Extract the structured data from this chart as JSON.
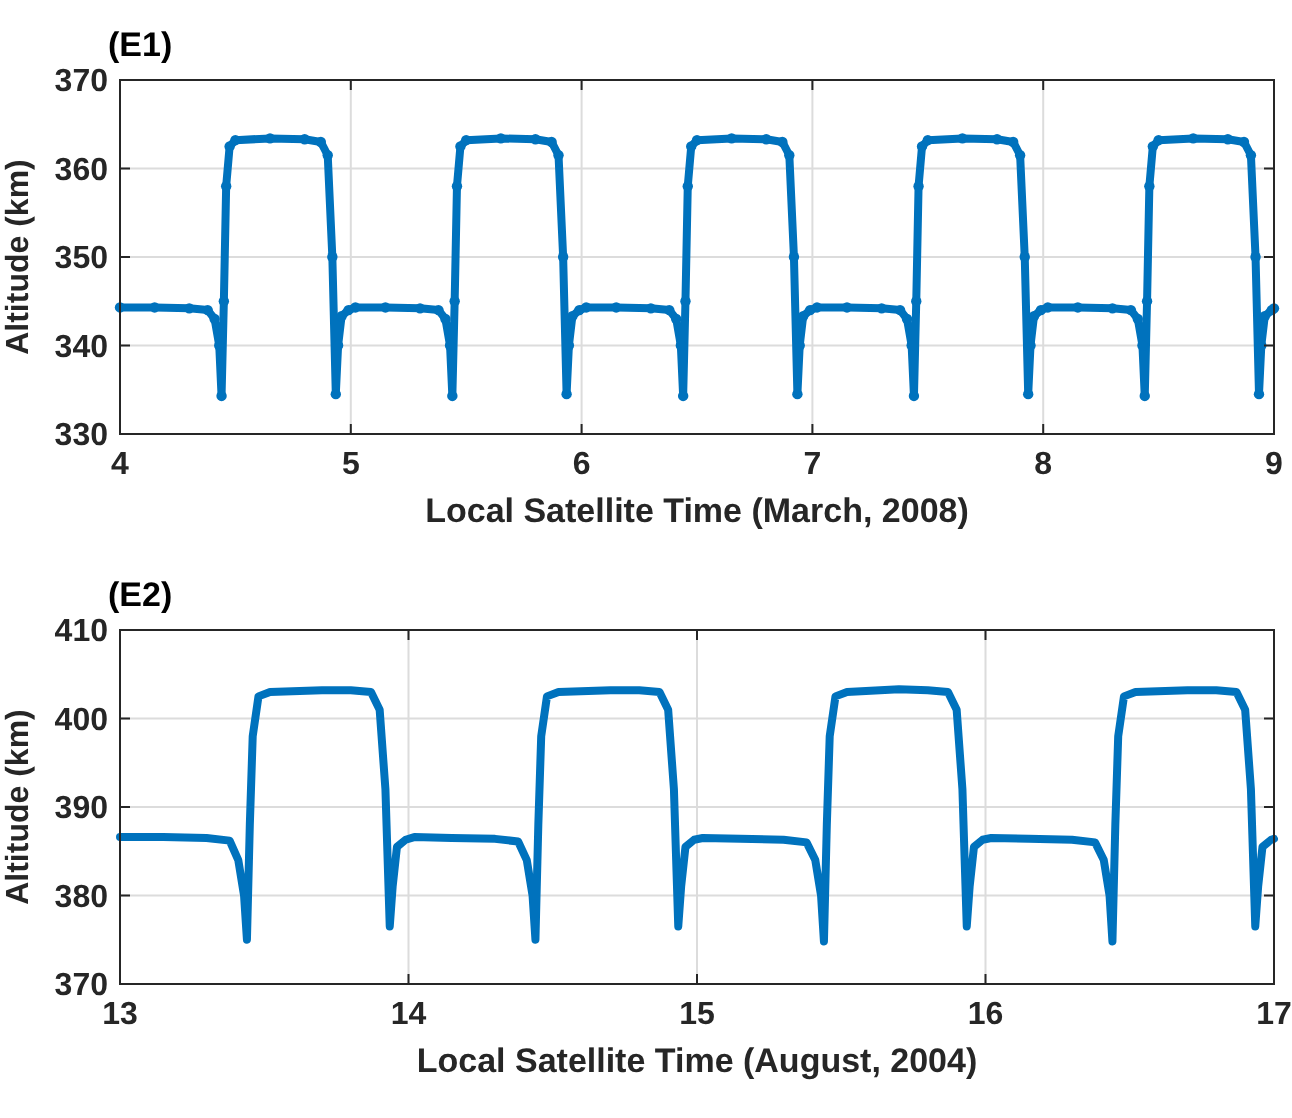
{
  "chart_data": [
    {
      "type": "line",
      "title": "(E1)",
      "xlabel": "Local Satellite Time (March, 2008)",
      "ylabel": "Altitude (km)",
      "xlim": [
        4,
        9
      ],
      "xticks": [
        4,
        5,
        6,
        7,
        8,
        9
      ],
      "ylim": [
        330,
        370
      ],
      "yticks": [
        330,
        340,
        350,
        360,
        370
      ],
      "grid": true,
      "marker": "circle",
      "line_style": "solid",
      "series": [
        {
          "color": "#0072bd",
          "x": [
            4,
            4.15,
            4.3,
            4.38,
            4.41,
            4.43,
            4.44,
            4.45,
            4.46,
            4.475,
            4.5,
            4.65,
            4.8,
            4.87,
            4.9,
            4.92,
            4.935,
            4.945,
            4.96,
            4.99,
            5.02,
            5.15,
            5.3,
            5.38,
            5.41,
            5.43,
            5.44,
            5.45,
            5.46,
            5.475,
            5.5,
            5.65,
            5.8,
            5.87,
            5.9,
            5.92,
            5.935,
            5.945,
            5.96,
            5.99,
            6.02,
            6.15,
            6.3,
            6.38,
            6.41,
            6.43,
            6.44,
            6.45,
            6.46,
            6.475,
            6.5,
            6.65,
            6.8,
            6.87,
            6.9,
            6.92,
            6.935,
            6.945,
            6.96,
            6.99,
            7.02,
            7.15,
            7.3,
            7.38,
            7.41,
            7.43,
            7.44,
            7.45,
            7.46,
            7.475,
            7.5,
            7.65,
            7.8,
            7.87,
            7.9,
            7.92,
            7.935,
            7.945,
            7.96,
            7.99,
            8.02,
            8.15,
            8.3,
            8.38,
            8.41,
            8.43,
            8.44,
            8.45,
            8.46,
            8.475,
            8.5,
            8.65,
            8.8,
            8.87,
            8.9,
            8.92,
            8.935,
            8.945,
            8.96,
            8.99,
            9
          ],
          "values": [
            344.3,
            344.3,
            344.2,
            344.0,
            343.0,
            340,
            334.3,
            345,
            358,
            362.5,
            363.2,
            363.4,
            363.3,
            363.0,
            361.5,
            350,
            334.5,
            340,
            343.3,
            344.0,
            344.3,
            344.3,
            344.2,
            344.0,
            343.0,
            340,
            334.3,
            345,
            358,
            362.5,
            363.2,
            363.4,
            363.3,
            363.0,
            361.5,
            350,
            334.5,
            340,
            343.3,
            344.0,
            344.3,
            344.3,
            344.2,
            344.0,
            343.0,
            340,
            334.3,
            345,
            358,
            362.5,
            363.2,
            363.4,
            363.3,
            363.0,
            361.5,
            350,
            334.5,
            340,
            343.3,
            344.0,
            344.3,
            344.3,
            344.2,
            344.0,
            343.0,
            340,
            334.3,
            345,
            358,
            362.5,
            363.2,
            363.4,
            363.3,
            363.0,
            361.5,
            350,
            334.5,
            340,
            343.3,
            344.0,
            344.3,
            344.3,
            344.2,
            344.0,
            343.0,
            340,
            334.3,
            345,
            358,
            362.5,
            363.2,
            363.4,
            363.3,
            363.0,
            361.5,
            350,
            334.5,
            340,
            343.3,
            344.0,
            344.2
          ]
        }
      ]
    },
    {
      "type": "line",
      "title": "(E2)",
      "xlabel": "Local Satellite Time (August, 2004)",
      "ylabel": "Altitude (km)",
      "xlim": [
        13,
        17
      ],
      "xticks": [
        13,
        14,
        15,
        16,
        17
      ],
      "ylim": [
        370,
        410
      ],
      "yticks": [
        370,
        380,
        390,
        400,
        410
      ],
      "grid": true,
      "marker": "none",
      "line_style": "solid",
      "series": [
        {
          "color": "#0072bd",
          "x": [
            13,
            13.15,
            13.3,
            13.38,
            13.41,
            13.43,
            13.44,
            13.45,
            13.46,
            13.48,
            13.52,
            13.7,
            13.8,
            13.87,
            13.9,
            13.92,
            13.935,
            13.945,
            13.96,
            13.99,
            14.02,
            14.15,
            14.3,
            14.38,
            14.41,
            14.43,
            14.44,
            14.45,
            14.46,
            14.48,
            14.52,
            14.7,
            14.8,
            14.87,
            14.9,
            14.92,
            14.935,
            14.945,
            14.96,
            14.99,
            15.02,
            15.15,
            15.3,
            15.38,
            15.41,
            15.43,
            15.44,
            15.45,
            15.46,
            15.48,
            15.52,
            15.7,
            15.8,
            15.87,
            15.9,
            15.92,
            15.935,
            15.945,
            15.96,
            15.99,
            16.02,
            16.15,
            16.3,
            16.38,
            16.41,
            16.43,
            16.44,
            16.45,
            16.46,
            16.48,
            16.52,
            16.7,
            16.8,
            16.87,
            16.9,
            16.92,
            16.935,
            16.945,
            16.96,
            16.99,
            17
          ],
          "values": [
            386.6,
            386.6,
            386.5,
            386.2,
            384,
            380,
            375,
            388,
            398,
            402.5,
            403,
            403.2,
            403.2,
            403,
            401,
            392,
            376.5,
            381,
            385.5,
            386.3,
            386.6,
            386.5,
            386.4,
            386.1,
            384,
            380,
            375,
            388,
            398,
            402.5,
            403,
            403.2,
            403.2,
            403,
            401,
            392,
            376.5,
            381,
            385.5,
            386.3,
            386.5,
            386.4,
            386.3,
            386.0,
            384,
            380,
            374.8,
            388,
            398,
            402.5,
            403,
            403.3,
            403.2,
            403,
            401,
            392,
            376.5,
            381,
            385.5,
            386.3,
            386.5,
            386.4,
            386.3,
            386.0,
            384,
            380,
            374.8,
            388,
            398,
            402.5,
            403,
            403.2,
            403.2,
            403,
            401,
            392,
            376.5,
            381,
            385.5,
            386.3,
            386.4
          ]
        }
      ]
    }
  ]
}
